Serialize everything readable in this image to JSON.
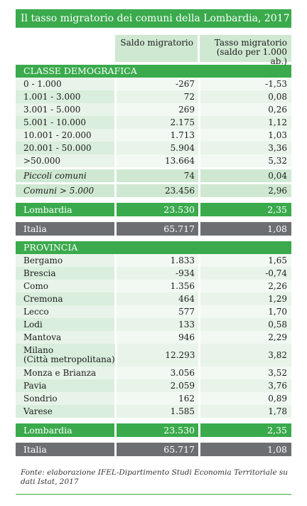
{
  "title": "Il tasso migratorio dei comuni della Lombardia, 2017",
  "columns": {
    "saldo": "Saldo migratorio",
    "tasso": "Tasso migratorio (saldo per 1.000 ab.)"
  },
  "classe": {
    "heading": "CLASSE DEMOGRAFICA",
    "rows": [
      {
        "label": "0 - 1.000",
        "saldo": "-267",
        "tasso": "-1,53"
      },
      {
        "label": "1.001 - 3.000",
        "saldo": "72",
        "tasso": "0,08"
      },
      {
        "label": "3.001 - 5.000",
        "saldo": "269",
        "tasso": "0,26"
      },
      {
        "label": "5.001 - 10.000",
        "saldo": "2.175",
        "tasso": "1,12"
      },
      {
        "label": "10.001 - 20.000",
        "saldo": "1.713",
        "tasso": "1,03"
      },
      {
        "label": "20.001 - 50.000",
        "saldo": "5.904",
        "tasso": "3,36"
      },
      {
        "label": ">50.000",
        "saldo": "13.664",
        "tasso": "5,32"
      }
    ],
    "subtotals": [
      {
        "label": "Piccoli comuni",
        "saldo": "74",
        "tasso": "0,04"
      },
      {
        "label": "Comuni > 5.000",
        "saldo": "23.456",
        "tasso": "2,96"
      }
    ],
    "lombardia": {
      "label": "Lombardia",
      "saldo": "23.530",
      "tasso": "2,35"
    },
    "italia": {
      "label": "Italia",
      "saldo": "65.717",
      "tasso": "1,08"
    }
  },
  "provincia": {
    "heading": "PROVINCIA",
    "rows": [
      {
        "label": "Bergamo",
        "saldo": "1.833",
        "tasso": "1,65"
      },
      {
        "label": "Brescia",
        "saldo": "-934",
        "tasso": "-0,74"
      },
      {
        "label": "Como",
        "saldo": "1.356",
        "tasso": "2,26"
      },
      {
        "label": "Cremona",
        "saldo": "464",
        "tasso": "1,29"
      },
      {
        "label": "Lecco",
        "saldo": "577",
        "tasso": "1,70"
      },
      {
        "label": "Lodi",
        "saldo": "133",
        "tasso": "0,58"
      },
      {
        "label": "Mantova",
        "saldo": "946",
        "tasso": "2,29"
      },
      {
        "label": "Milano",
        "label2": "(Città metropolitana)",
        "saldo": "12.293",
        "tasso": "3,82"
      },
      {
        "label": "Monza e Brianza",
        "saldo": "3.056",
        "tasso": "3,52"
      },
      {
        "label": "Pavia",
        "saldo": "2.059",
        "tasso": "3,76"
      },
      {
        "label": "Sondrio",
        "saldo": "162",
        "tasso": "0,89"
      },
      {
        "label": "Varese",
        "saldo": "1.585",
        "tasso": "1,78"
      }
    ],
    "lombardia": {
      "label": "Lombardia",
      "saldo": "23.530",
      "tasso": "2,35"
    },
    "italia": {
      "label": "Italia",
      "saldo": "65.717",
      "tasso": "1,08"
    }
  },
  "source_note": "Fonte: elaborazione IFEL-Dipartimento Studi Economia Territoriale su dati Istat, 2017"
}
